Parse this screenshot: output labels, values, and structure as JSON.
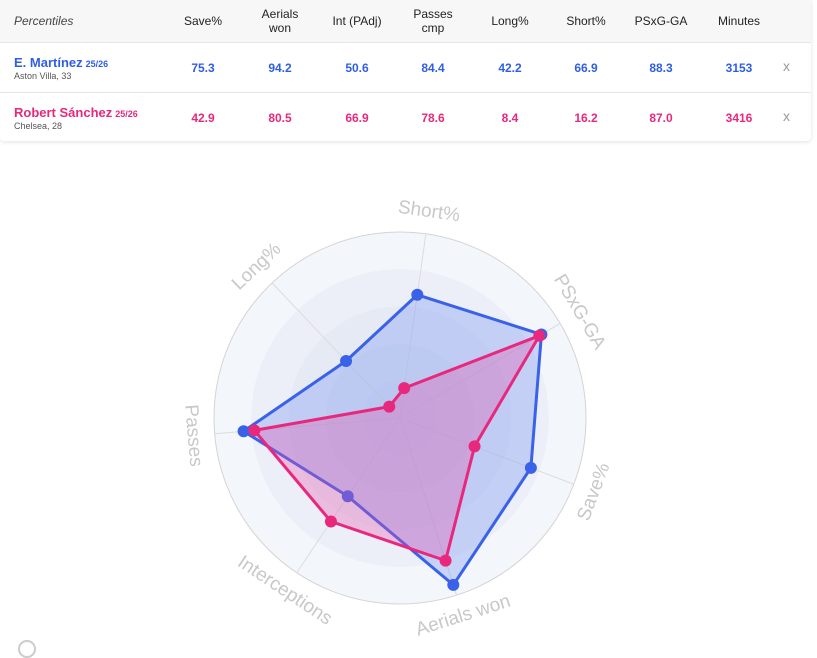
{
  "table": {
    "header_label": "Percentiles",
    "columns": [
      {
        "label": "Save%"
      },
      {
        "label": "Aerials\nwon"
      },
      {
        "label": "Int (PAdj)"
      },
      {
        "label": "Passes\ncmp"
      },
      {
        "label": "Long%"
      },
      {
        "label": "Short%"
      },
      {
        "label": "PSxG-GA"
      },
      {
        "label": "Minutes"
      }
    ],
    "rows": [
      {
        "name": "E. Martínez",
        "season": "25/26",
        "club": "Aston Villa, 33",
        "color": "#2f5ee6",
        "values": [
          "75.3",
          "94.2",
          "50.6",
          "84.4",
          "42.2",
          "66.9",
          "88.3",
          "3153"
        ],
        "remove": "x"
      },
      {
        "name": "Robert Sánchez",
        "season": "25/26",
        "club": "Chelsea, 28",
        "color": "#e8287d",
        "values": [
          "42.9",
          "80.5",
          "66.9",
          "78.6",
          "8.4",
          "16.2",
          "87.0",
          "3416"
        ],
        "remove": "x"
      }
    ]
  },
  "chart_data": {
    "type": "radar",
    "axes": [
      "Save%",
      "Aerials won",
      "Interceptions",
      "Passes",
      "Long%",
      "Short%",
      "PSxG-GA"
    ],
    "range": [
      0,
      100
    ],
    "grid": true,
    "series": [
      {
        "name": "E. Martínez",
        "color": "#3a62e8",
        "values": [
          75.3,
          94.2,
          50.6,
          84.4,
          42.2,
          66.9,
          88.3
        ]
      },
      {
        "name": "Robert Sánchez",
        "color": "#e8287d",
        "values": [
          42.9,
          80.5,
          66.9,
          78.6,
          8.4,
          16.2,
          87.0
        ]
      }
    ]
  }
}
